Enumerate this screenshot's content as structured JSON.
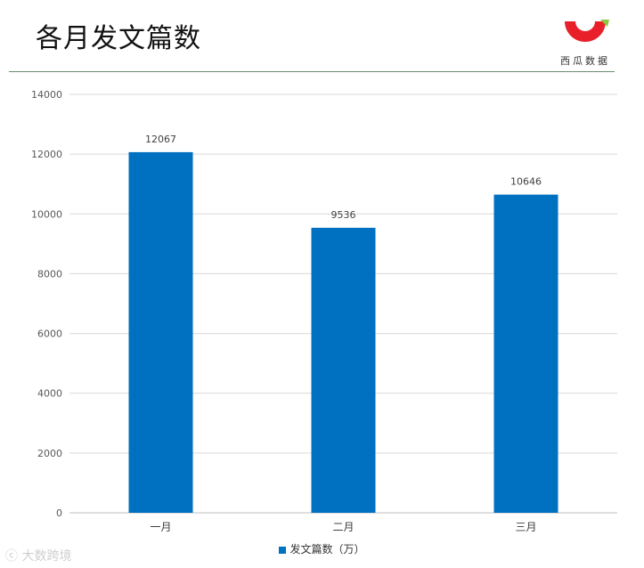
{
  "page": {
    "title": "各月发文篇数"
  },
  "brand": {
    "logo_text": "西瓜数据",
    "watermark": "大数跨境",
    "colors": {
      "red": "#e8202a",
      "green": "#8dc63f"
    }
  },
  "chart_data": {
    "type": "bar",
    "categories": [
      "一月",
      "二月",
      "三月"
    ],
    "series": [
      {
        "name": "发文篇数（万）",
        "values": [
          12067,
          9536,
          10646
        ],
        "color": "#0070c0"
      }
    ],
    "ylim": [
      0,
      14000
    ],
    "yticks": [
      0,
      2000,
      4000,
      6000,
      8000,
      10000,
      12000,
      14000
    ],
    "grid": true,
    "legend": "bottom-center",
    "data_labels": true
  }
}
